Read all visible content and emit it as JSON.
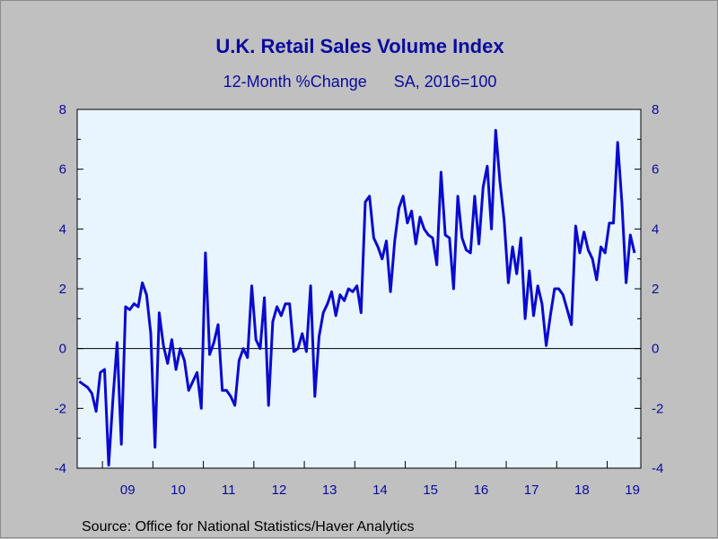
{
  "chart_data": {
    "type": "line",
    "title": "U.K. Retail Sales Volume Index",
    "subtitle": "12-Month %Change      SA, 2016=100",
    "source": "Source:  Office for National Statistics/Haver Analytics",
    "y_ticks": [
      "8",
      "6",
      "4",
      "2",
      "0",
      "-2",
      "-4"
    ],
    "x_tick_labels": [
      "09",
      "10",
      "11",
      "12",
      "13",
      "14",
      "15",
      "16",
      "17",
      "18",
      "19"
    ],
    "ylim": [
      -4,
      8
    ],
    "x_start": "2008-07",
    "x_end": "2019-08",
    "grid": false,
    "zero_line": true,
    "line_color": "#0a0ad0",
    "plot_bg": "#e8f5ff",
    "series": [
      {
        "values": [
          -1.1,
          -1.2,
          -1.3,
          -1.5,
          -2.1,
          -0.8,
          -0.7,
          -3.9,
          -1.7,
          0.2,
          -3.2,
          1.4,
          1.3,
          1.5,
          1.4,
          2.2,
          1.8,
          0.5,
          -3.3,
          1.2,
          0.1,
          -0.5,
          0.3,
          -0.7,
          0.0,
          -0.4,
          -1.4,
          -1.1,
          -0.8,
          -2.0,
          3.2,
          -0.2,
          0.2,
          0.8,
          -1.4,
          -1.4,
          -1.6,
          -1.9,
          -0.4,
          0.0,
          -0.3,
          2.1,
          0.3,
          0.0,
          1.7,
          -1.9,
          0.9,
          1.4,
          1.1,
          1.5,
          1.5,
          -0.1,
          0.0,
          0.5,
          -0.1,
          2.1,
          -1.6,
          0.4,
          1.2,
          1.5,
          1.9,
          1.1,
          1.8,
          1.6,
          2.0,
          1.9,
          2.1,
          1.2,
          4.9,
          5.1,
          3.7,
          3.4,
          3.0,
          3.6,
          1.9,
          3.6,
          4.7,
          5.1,
          4.2,
          4.6,
          3.5,
          4.4,
          4.0,
          3.8,
          3.7,
          2.8,
          5.9,
          3.8,
          3.7,
          2.0,
          5.1,
          3.7,
          3.3,
          3.2,
          5.1,
          3.5,
          5.4,
          6.1,
          4.0,
          7.3,
          5.6,
          4.3,
          2.2,
          3.4,
          2.5,
          3.7,
          1.0,
          2.6,
          1.1,
          2.1,
          1.5,
          0.1,
          1.1,
          2.0,
          2.0,
          1.8,
          1.3,
          0.8,
          4.1,
          3.2,
          3.9,
          3.3,
          3.0,
          2.3,
          3.4,
          3.2,
          4.2,
          4.2,
          6.9,
          4.9,
          2.2,
          3.8,
          3.2
        ]
      }
    ]
  }
}
